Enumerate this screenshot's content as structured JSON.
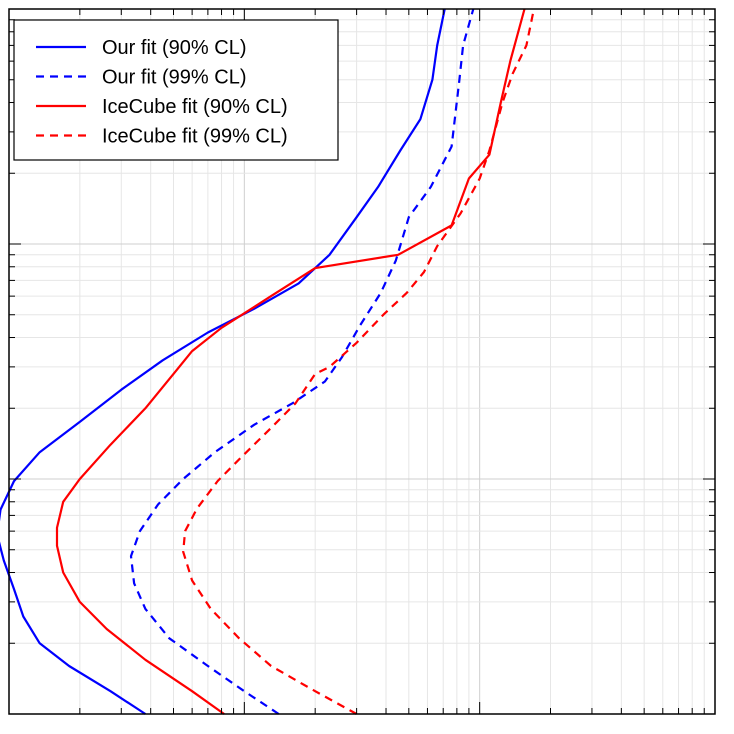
{
  "chart_data": {
    "type": "line",
    "title": "",
    "xlabel": "",
    "ylabel": "",
    "xscale": "log",
    "yscale": "log",
    "xlim": [
      0.1,
      100
    ],
    "ylim": [
      0.01,
      10
    ],
    "grid": true,
    "tick_labels_visible": false,
    "legend_placement": "top-left",
    "series": [
      {
        "name": "Our fit (90% CL)",
        "color": "#0000ff",
        "dash": "solid",
        "points": [
          [
            0.38,
            0.01
          ],
          [
            0.27,
            0.0125
          ],
          [
            0.18,
            0.016
          ],
          [
            0.135,
            0.02
          ],
          [
            0.115,
            0.026
          ],
          [
            0.105,
            0.034
          ],
          [
            0.095,
            0.045
          ],
          [
            0.089,
            0.058
          ],
          [
            0.092,
            0.074
          ],
          [
            0.105,
            0.098
          ],
          [
            0.135,
            0.13
          ],
          [
            0.2,
            0.175
          ],
          [
            0.3,
            0.24
          ],
          [
            0.45,
            0.32
          ],
          [
            0.7,
            0.42
          ],
          [
            1.1,
            0.53
          ],
          [
            1.7,
            0.68
          ],
          [
            2.3,
            0.9
          ],
          [
            3.0,
            1.3
          ],
          [
            3.7,
            1.75
          ],
          [
            4.6,
            2.5
          ],
          [
            5.6,
            3.4
          ],
          [
            6.3,
            5.0
          ],
          [
            6.6,
            7.0
          ],
          [
            7.1,
            10.0
          ]
        ]
      },
      {
        "name": "Our fit (99% CL)",
        "color": "#0000ff",
        "dash": "dashed",
        "points": [
          [
            1.4,
            0.01
          ],
          [
            1.0,
            0.0125
          ],
          [
            0.7,
            0.016
          ],
          [
            0.48,
            0.021
          ],
          [
            0.38,
            0.028
          ],
          [
            0.34,
            0.036
          ],
          [
            0.33,
            0.047
          ],
          [
            0.36,
            0.06
          ],
          [
            0.43,
            0.078
          ],
          [
            0.55,
            0.1
          ],
          [
            0.75,
            0.13
          ],
          [
            1.1,
            0.17
          ],
          [
            1.6,
            0.21
          ],
          [
            2.2,
            0.26
          ],
          [
            2.6,
            0.33
          ],
          [
            3.1,
            0.45
          ],
          [
            3.8,
            0.62
          ],
          [
            4.4,
            0.85
          ],
          [
            5.0,
            1.3
          ],
          [
            6.2,
            1.75
          ],
          [
            7.6,
            2.6
          ],
          [
            8.2,
            5.0
          ],
          [
            8.5,
            7.0
          ],
          [
            9.4,
            10.0
          ]
        ]
      },
      {
        "name": "IceCube fit (90% CL)",
        "color": "#ff0000",
        "dash": "solid",
        "points": [
          [
            0.82,
            0.01
          ],
          [
            0.6,
            0.0125
          ],
          [
            0.38,
            0.017
          ],
          [
            0.26,
            0.023
          ],
          [
            0.2,
            0.03
          ],
          [
            0.17,
            0.04
          ],
          [
            0.16,
            0.052
          ],
          [
            0.16,
            0.062
          ],
          [
            0.17,
            0.08
          ],
          [
            0.2,
            0.1
          ],
          [
            0.27,
            0.14
          ],
          [
            0.38,
            0.2
          ],
          [
            0.5,
            0.28
          ],
          [
            0.6,
            0.35
          ],
          [
            0.8,
            0.44
          ],
          [
            1.3,
            0.6
          ],
          [
            2.0,
            0.79
          ],
          [
            4.5,
            0.9
          ],
          [
            7.6,
            1.2
          ],
          [
            9.0,
            1.9
          ],
          [
            11.0,
            2.4
          ],
          [
            12.3,
            4.0
          ],
          [
            13.5,
            6.0
          ],
          [
            15.5,
            10.0
          ]
        ]
      },
      {
        "name": "IceCube fit (99% CL)",
        "color": "#ff0000",
        "dash": "dashed",
        "points": [
          [
            3.0,
            0.01
          ],
          [
            2.0,
            0.0125
          ],
          [
            1.3,
            0.016
          ],
          [
            0.95,
            0.021
          ],
          [
            0.72,
            0.028
          ],
          [
            0.6,
            0.037
          ],
          [
            0.55,
            0.049
          ],
          [
            0.56,
            0.06
          ],
          [
            0.63,
            0.075
          ],
          [
            0.77,
            0.098
          ],
          [
            0.98,
            0.125
          ],
          [
            1.3,
            0.165
          ],
          [
            1.65,
            0.21
          ],
          [
            2.0,
            0.28
          ],
          [
            2.3,
            0.3
          ],
          [
            3.0,
            0.38
          ],
          [
            3.9,
            0.5
          ],
          [
            4.9,
            0.62
          ],
          [
            5.8,
            0.76
          ],
          [
            6.6,
            0.98
          ],
          [
            8.3,
            1.35
          ],
          [
            10.0,
            1.9
          ],
          [
            11.0,
            2.5
          ],
          [
            12.5,
            4.0
          ],
          [
            13.8,
            5.3
          ],
          [
            15.8,
            7.0
          ],
          [
            17.0,
            10.0
          ]
        ]
      }
    ]
  }
}
